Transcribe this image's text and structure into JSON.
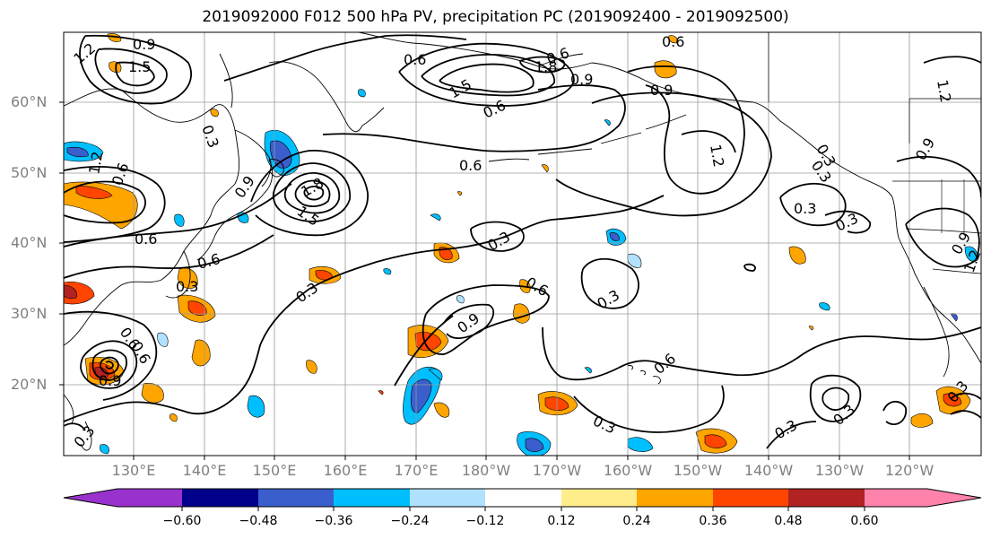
{
  "title": "2019092000 F012 500 hPa PV, precipitation PC (2019092400 - 2019092500)",
  "lat_labels": [
    "60°N",
    "50°N",
    "40°N",
    "30°N",
    "20°N"
  ],
  "lon_labels": [
    "130°E",
    "140°E",
    "150°E",
    "160°E",
    "170°E",
    "180°W",
    "170°W",
    "160°W",
    "150°W",
    "140°W",
    "130°W",
    "120°W"
  ],
  "colorbar": {
    "ticks": [
      "−0.60",
      "−0.48",
      "−0.36",
      "−0.24",
      "−0.12",
      "0.12",
      "0.24",
      "0.36",
      "0.48",
      "0.60"
    ],
    "colors": [
      "#9932cc",
      "#00008b",
      "#3a5fcd",
      "#00bfff",
      "#b0e2ff",
      "#ffffff",
      "#ffec8b",
      "#ffa500",
      "#ff4500",
      "#b22222",
      "#ff82ab"
    ]
  },
  "contour_labels": [
    "1.2",
    "1.5",
    "0.9",
    "0.6",
    "1.8",
    "1.5",
    "0.9",
    "0.6",
    "0.9",
    "0.6",
    "1.2",
    "0.3",
    "1.2",
    "0.9",
    "0.6",
    "0.3",
    "1.8",
    "1.5",
    "0.9",
    "0.6",
    "0.6",
    "0.3",
    "0.6",
    "0.3",
    "0.9",
    "0.6",
    "0.3",
    "0.6",
    "0.3",
    "0.3",
    "0.9",
    "0.3",
    "0.3",
    "0.9",
    "0.6",
    "0.3",
    "0.3",
    "0.3",
    "1.2",
    "0.6",
    "0.3",
    "0.3",
    "0.6",
    "1.2"
  ]
}
